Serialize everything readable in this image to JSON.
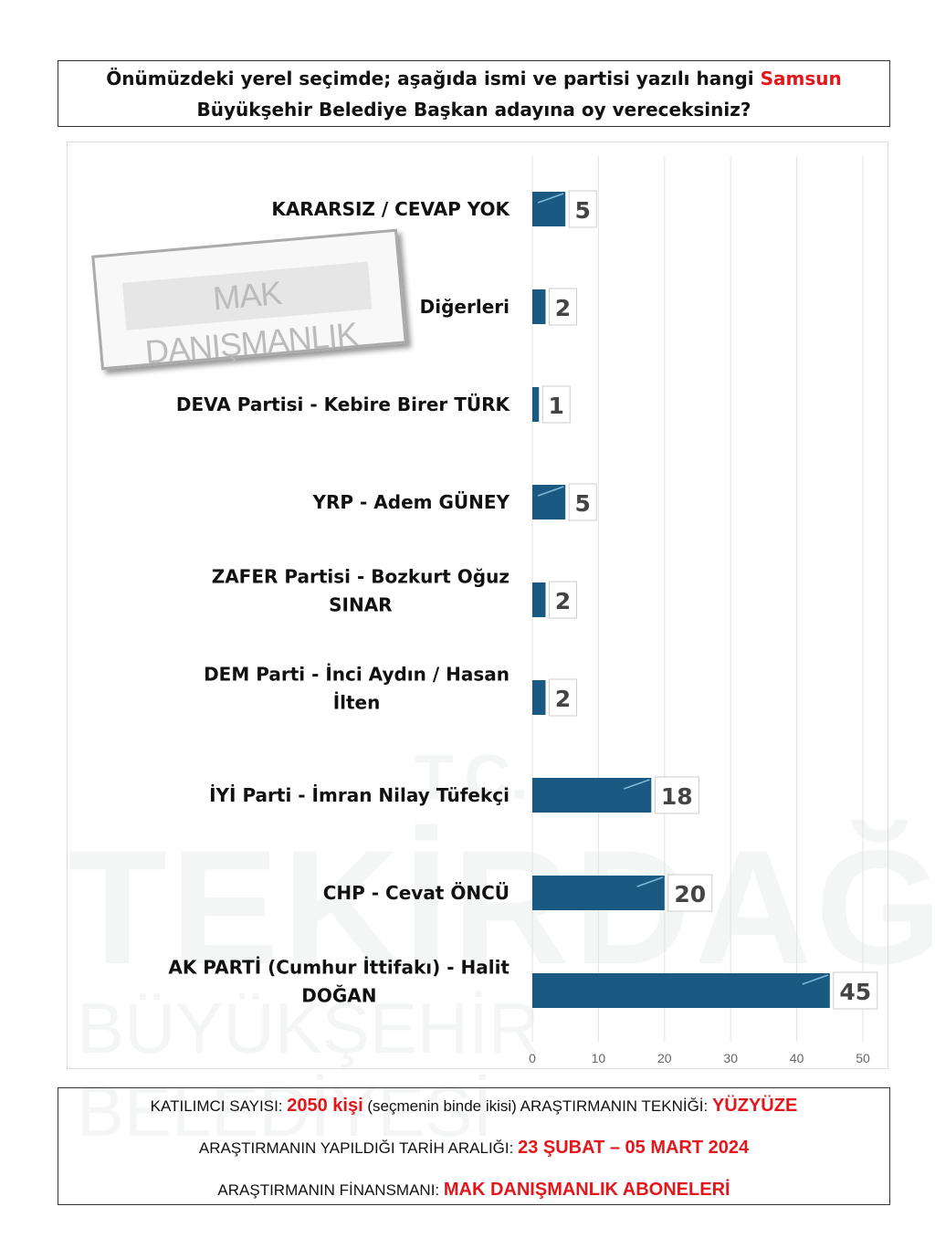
{
  "question": {
    "part1": "Önümüzdeki yerel seçimde; aşağıda ismi ve partisi yazılı hangi ",
    "highlight": "Samsun",
    "part2": "Büyükşehir Belediye Başkan adayına oy vereceksiniz?"
  },
  "watermark": {
    "stamp": "MAK DANIŞMANLIK",
    "tc": "T.C.",
    "city": "TEKİRDAĞ",
    "org": "BÜYÜKŞEHİR BELEDİYESİ"
  },
  "chart_data": {
    "type": "bar",
    "orientation": "horizontal",
    "categories": [
      "KARARSIZ / CEVAP YOK",
      "Diğerleri",
      "DEVA Partisi - Kebire Birer TÜRK",
      "YRP - Adem GÜNEY",
      "ZAFER Partisi - Bozkurt Oğuz SINAR",
      "DEM Parti - İnci Aydın / Hasan İlten",
      "İYİ Parti - İmran Nilay Tüfekçi",
      "CHP - Cevat ÖNCÜ",
      "AK PARTİ (Cumhur İttifakı) - Halit DOĞAN"
    ],
    "category_lines": [
      [
        "KARARSIZ / CEVAP YOK"
      ],
      [
        "Diğerleri"
      ],
      [
        "DEVA Partisi - Kebire Birer TÜRK"
      ],
      [
        "YRP - Adem GÜNEY"
      ],
      [
        "ZAFER Partisi - Bozkurt Oğuz",
        "SINAR"
      ],
      [
        "DEM Parti - İnci Aydın / Hasan",
        "İlten"
      ],
      [
        "İYİ Parti - İmran Nilay Tüfekçi"
      ],
      [
        "CHP - Cevat ÖNCÜ"
      ],
      [
        "AK PARTİ (Cumhur İttifakı) - Halit",
        "DOĞAN"
      ]
    ],
    "values": [
      5,
      2,
      1,
      5,
      2,
      2,
      18,
      20,
      45
    ],
    "xlim": [
      0,
      50
    ],
    "xticks": [
      "0",
      "10",
      "20",
      "30",
      "40",
      "50"
    ],
    "grid": true,
    "bar_color": "#1a5a82"
  },
  "footer": {
    "line1": {
      "label1": "KATILIMCI SAYISI: ",
      "value1": "2050 kişi",
      "note": " (seçmenin binde ikisi) ARAŞTIRMANIN TEKNİĞİ: ",
      "value2": "YÜZYÜZE"
    },
    "line2": {
      "label": "ARAŞTIRMANIN YAPILDIĞI TARİH ARALIĞI: ",
      "value": "23 ŞUBAT – 05 MART 2024"
    },
    "line3": {
      "label": "ARAŞTIRMANIN FİNANSMANI: ",
      "value": "MAK DANIŞMANLIK ABONELERİ"
    }
  },
  "colors": {
    "accent": "#e3161b",
    "bar": "#1a5a82"
  }
}
